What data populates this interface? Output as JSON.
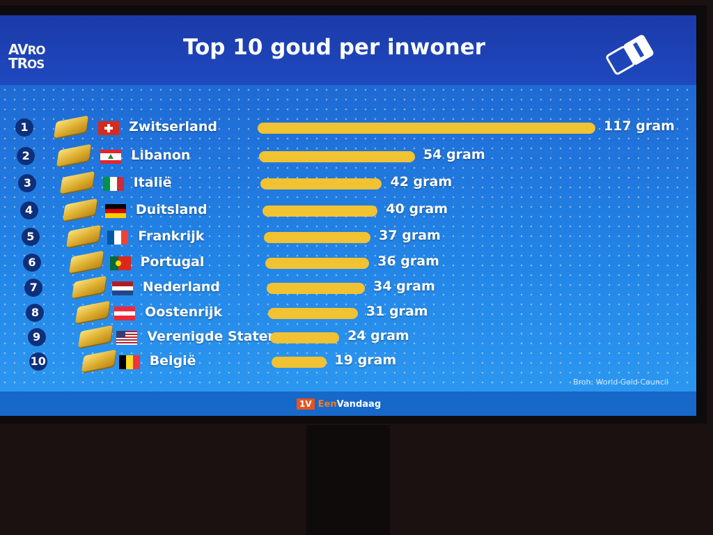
{
  "header": {
    "title": "Top 10 goud per inwoner",
    "broadcaster_logo": "AVROTROS",
    "channel_logo": "NPO 1"
  },
  "chart_data": {
    "type": "bar",
    "orientation": "horizontal",
    "title": "Top 10 goud per inwoner",
    "unit": "gram",
    "categories": [
      "Zwitserland",
      "Libanon",
      "Italië",
      "Duitsland",
      "Frankrijk",
      "Portugal",
      "Nederland",
      "Oostenrijk",
      "Verenigde Staten",
      "België"
    ],
    "ranks": [
      "1",
      "2",
      "3",
      "4",
      "5",
      "6",
      "7",
      "8",
      "9",
      "10"
    ],
    "values": [
      117,
      54,
      42,
      40,
      37,
      36,
      34,
      31,
      24,
      19
    ],
    "value_labels": [
      "117 gram",
      "54 gram",
      "42 gram",
      "40 gram",
      "37 gram",
      "36 gram",
      "34 gram",
      "31 gram",
      "24 gram",
      "19 gram"
    ],
    "flags": [
      "ch",
      "lb",
      "it",
      "de",
      "fr",
      "pt",
      "nl",
      "at",
      "us",
      "be"
    ],
    "bar_color": "#f1c232",
    "xlim": [
      0,
      117
    ]
  },
  "source": "Broh: World Gold Council",
  "footer": {
    "badge": "1V",
    "brand_part1": "Een",
    "brand_part2": "Vandaag"
  }
}
